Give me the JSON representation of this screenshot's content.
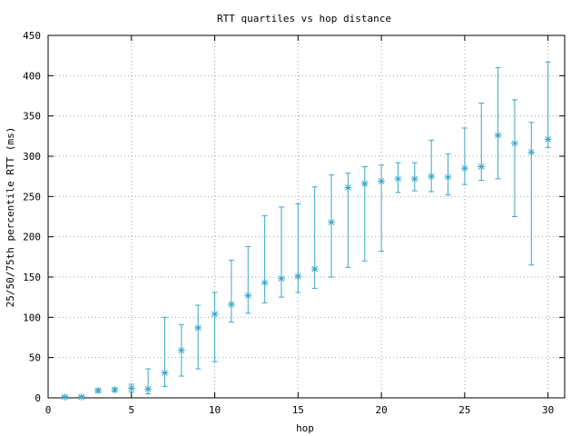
{
  "chart_data": {
    "type": "scatter",
    "title": "RTT quartiles vs hop distance",
    "xlabel": "hop",
    "ylabel": "25/50/75th percentile RTT (ms)",
    "xlim": [
      0,
      31
    ],
    "ylim": [
      0,
      450
    ],
    "xticks": [
      0,
      5,
      10,
      15,
      20,
      25,
      30
    ],
    "yticks": [
      0,
      50,
      100,
      150,
      200,
      250,
      300,
      350,
      400,
      450
    ],
    "grid": true,
    "color": "#3aa6c8",
    "points": [
      {
        "x": 1,
        "p25": 0,
        "median": 1,
        "p75": 2
      },
      {
        "x": 2,
        "p25": 0,
        "median": 1,
        "p75": 2
      },
      {
        "x": 3,
        "p25": 7,
        "median": 9,
        "p75": 11
      },
      {
        "x": 4,
        "p25": 8,
        "median": 10,
        "p75": 12
      },
      {
        "x": 5,
        "p25": 7,
        "median": 12,
        "p75": 17
      },
      {
        "x": 6,
        "p25": 5,
        "median": 11,
        "p75": 36
      },
      {
        "x": 7,
        "p25": 14,
        "median": 31,
        "p75": 100
      },
      {
        "x": 8,
        "p25": 27,
        "median": 59,
        "p75": 91
      },
      {
        "x": 9,
        "p25": 36,
        "median": 87,
        "p75": 115
      },
      {
        "x": 10,
        "p25": 45,
        "median": 104,
        "p75": 131
      },
      {
        "x": 11,
        "p25": 94,
        "median": 116,
        "p75": 171
      },
      {
        "x": 12,
        "p25": 105,
        "median": 127,
        "p75": 188
      },
      {
        "x": 13,
        "p25": 118,
        "median": 143,
        "p75": 226
      },
      {
        "x": 14,
        "p25": 125,
        "median": 148,
        "p75": 237
      },
      {
        "x": 15,
        "p25": 131,
        "median": 151,
        "p75": 241
      },
      {
        "x": 16,
        "p25": 136,
        "median": 160,
        "p75": 262
      },
      {
        "x": 17,
        "p25": 150,
        "median": 218,
        "p75": 277
      },
      {
        "x": 18,
        "p25": 162,
        "median": 261,
        "p75": 279
      },
      {
        "x": 19,
        "p25": 170,
        "median": 266,
        "p75": 287
      },
      {
        "x": 20,
        "p25": 182,
        "median": 269,
        "p75": 289
      },
      {
        "x": 21,
        "p25": 255,
        "median": 272,
        "p75": 292
      },
      {
        "x": 22,
        "p25": 257,
        "median": 272,
        "p75": 292
      },
      {
        "x": 23,
        "p25": 256,
        "median": 275,
        "p75": 320
      },
      {
        "x": 24,
        "p25": 252,
        "median": 274,
        "p75": 303
      },
      {
        "x": 25,
        "p25": 265,
        "median": 285,
        "p75": 335
      },
      {
        "x": 26,
        "p25": 270,
        "median": 287,
        "p75": 366
      },
      {
        "x": 27,
        "p25": 272,
        "median": 326,
        "p75": 410
      },
      {
        "x": 28,
        "p25": 225,
        "median": 316,
        "p75": 370
      },
      {
        "x": 29,
        "p25": 165,
        "median": 305,
        "p75": 342
      },
      {
        "x": 30,
        "p25": 311,
        "median": 321,
        "p75": 417
      }
    ]
  }
}
